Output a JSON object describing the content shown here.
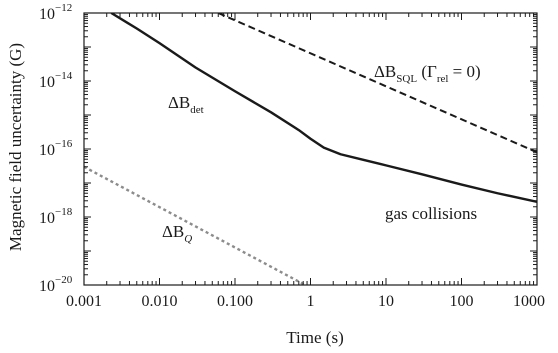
{
  "chart_data": {
    "type": "line",
    "xlabel": "Time (s)",
    "ylabel": "Magnetic field uncertainty (G)",
    "xscale": "log",
    "yscale": "log",
    "xlim": [
      0.001,
      1000
    ],
    "ylim": [
      1e-20,
      1e-12
    ],
    "x_ticks": [
      {
        "value": 0.001,
        "label": "0.001"
      },
      {
        "value": 0.01,
        "label": "0.010"
      },
      {
        "value": 0.1,
        "label": "0.100"
      },
      {
        "value": 1,
        "label": "1"
      },
      {
        "value": 10,
        "label": "10"
      },
      {
        "value": 100,
        "label": "100"
      },
      {
        "value": 1000,
        "label": "1000"
      }
    ],
    "y_ticks": [
      {
        "value": 1e-12,
        "base": "10",
        "exp": "−12"
      },
      {
        "value": 1e-14,
        "base": "10",
        "exp": "−14"
      },
      {
        "value": 1e-16,
        "base": "10",
        "exp": "−16"
      },
      {
        "value": 1e-18,
        "base": "10",
        "exp": "−18"
      },
      {
        "value": 1e-20,
        "base": "10",
        "exp": "−20"
      }
    ],
    "grid": false,
    "series": [
      {
        "style": "solid",
        "color": "#1a1a1a",
        "x": [
          0.0023,
          0.005,
          0.01,
          0.03,
          0.1,
          0.3,
          0.7,
          1.0,
          1.5,
          2.5,
          5,
          10,
          30,
          100,
          300,
          1000
        ],
        "y": [
          1e-12,
          3.5e-13,
          1.3e-13,
          2.5e-14,
          5e-15,
          1.2e-15,
          3.6e-16,
          2e-16,
          1.1e-16,
          7e-17,
          4.8e-17,
          3.3e-17,
          1.8e-17,
          9e-18,
          5e-18,
          2.8e-18
        ]
      },
      {
        "style": "dashed",
        "color": "#1a1a1a",
        "x": [
          0.06,
          1000
        ],
        "y": [
          1e-12,
          8e-17
        ]
      },
      {
        "style": "dotted",
        "color": "#8c8c8c",
        "x": [
          0.001,
          0.85
        ],
        "y": [
          3e-17,
          1e-20
        ]
      }
    ],
    "annotations": [
      {
        "main": "ΔB",
        "sub": "det",
        "after": ""
      },
      {
        "main": "ΔB",
        "sub": "SQL",
        "after": " (Γ",
        "sub2": "rel",
        "after2": " = 0)"
      },
      {
        "main": "ΔB",
        "sub": "Q",
        "after": ""
      },
      {
        "main": "gas collisions",
        "sub": "",
        "after": ""
      }
    ]
  }
}
